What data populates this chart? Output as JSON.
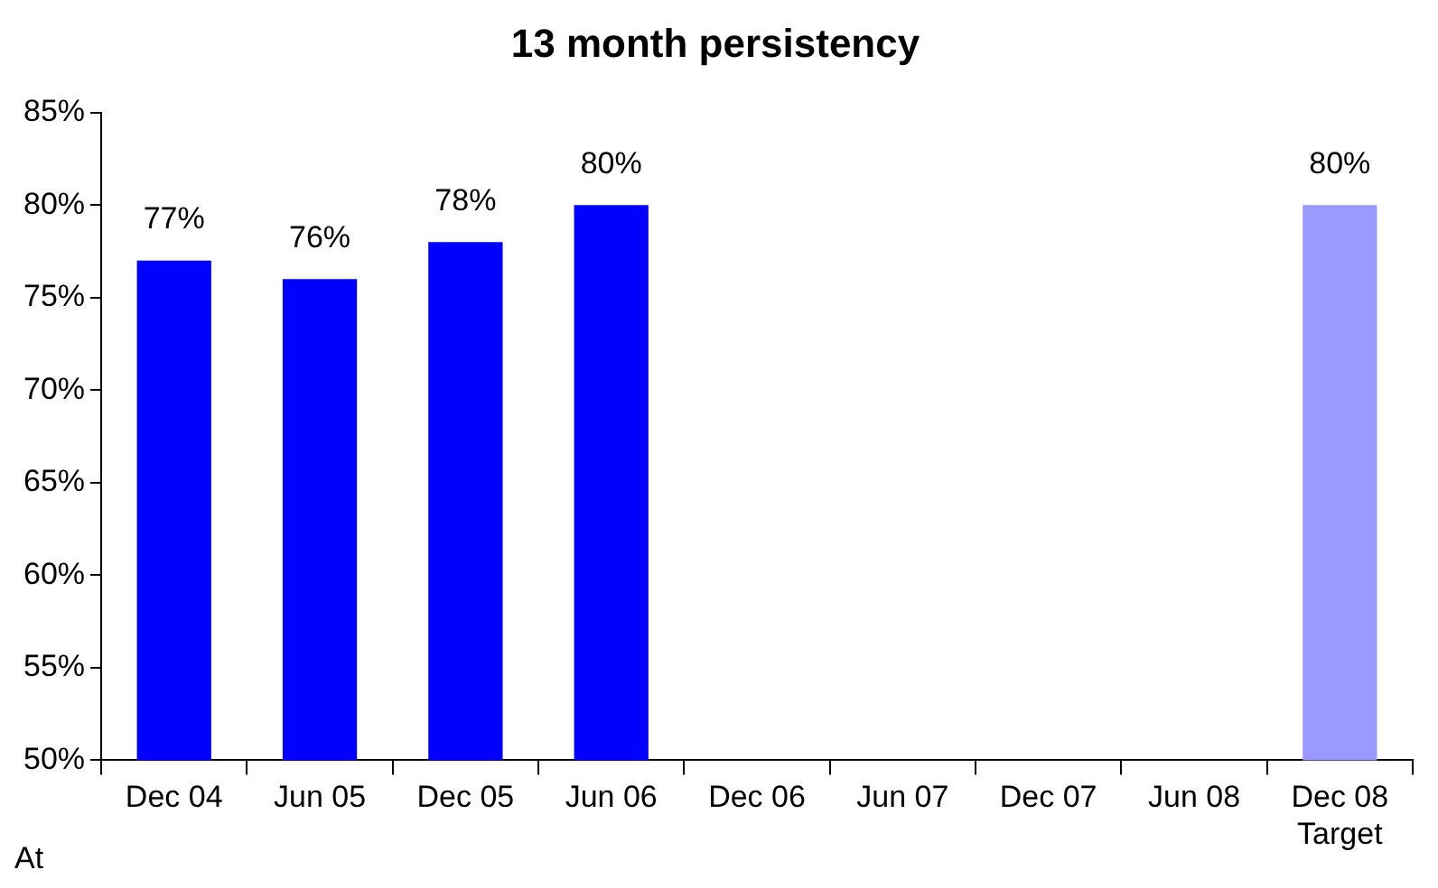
{
  "chart_data": {
    "type": "bar",
    "title": "13 month persistency",
    "categories": [
      "Dec 04",
      "Jun 05",
      "Dec 05",
      "Jun 06",
      "Dec 06",
      "Jun 07",
      "Dec 07",
      "Jun 08",
      "Dec 08\nTarget"
    ],
    "values": [
      77,
      76,
      78,
      80,
      null,
      null,
      null,
      null,
      80
    ],
    "value_labels": [
      "77%",
      "76%",
      "78%",
      "80%",
      null,
      null,
      null,
      null,
      "80%"
    ],
    "colors": [
      "#0000ff",
      "#0000ff",
      "#0000ff",
      "#0000ff",
      "#0000ff",
      "#0000ff",
      "#0000ff",
      "#0000ff",
      "#9999ff"
    ],
    "ylim": [
      50,
      85
    ],
    "yticks": [
      {
        "value": 50,
        "label": "50%"
      },
      {
        "value": 55,
        "label": "55%"
      },
      {
        "value": 60,
        "label": "60%"
      },
      {
        "value": 65,
        "label": "65%"
      },
      {
        "value": 70,
        "label": "70%"
      },
      {
        "value": 75,
        "label": "75%"
      },
      {
        "value": 80,
        "label": "80%"
      },
      {
        "value": 85,
        "label": "85%"
      }
    ],
    "annotations": [
      "At"
    ],
    "grid": false,
    "legend": false
  }
}
